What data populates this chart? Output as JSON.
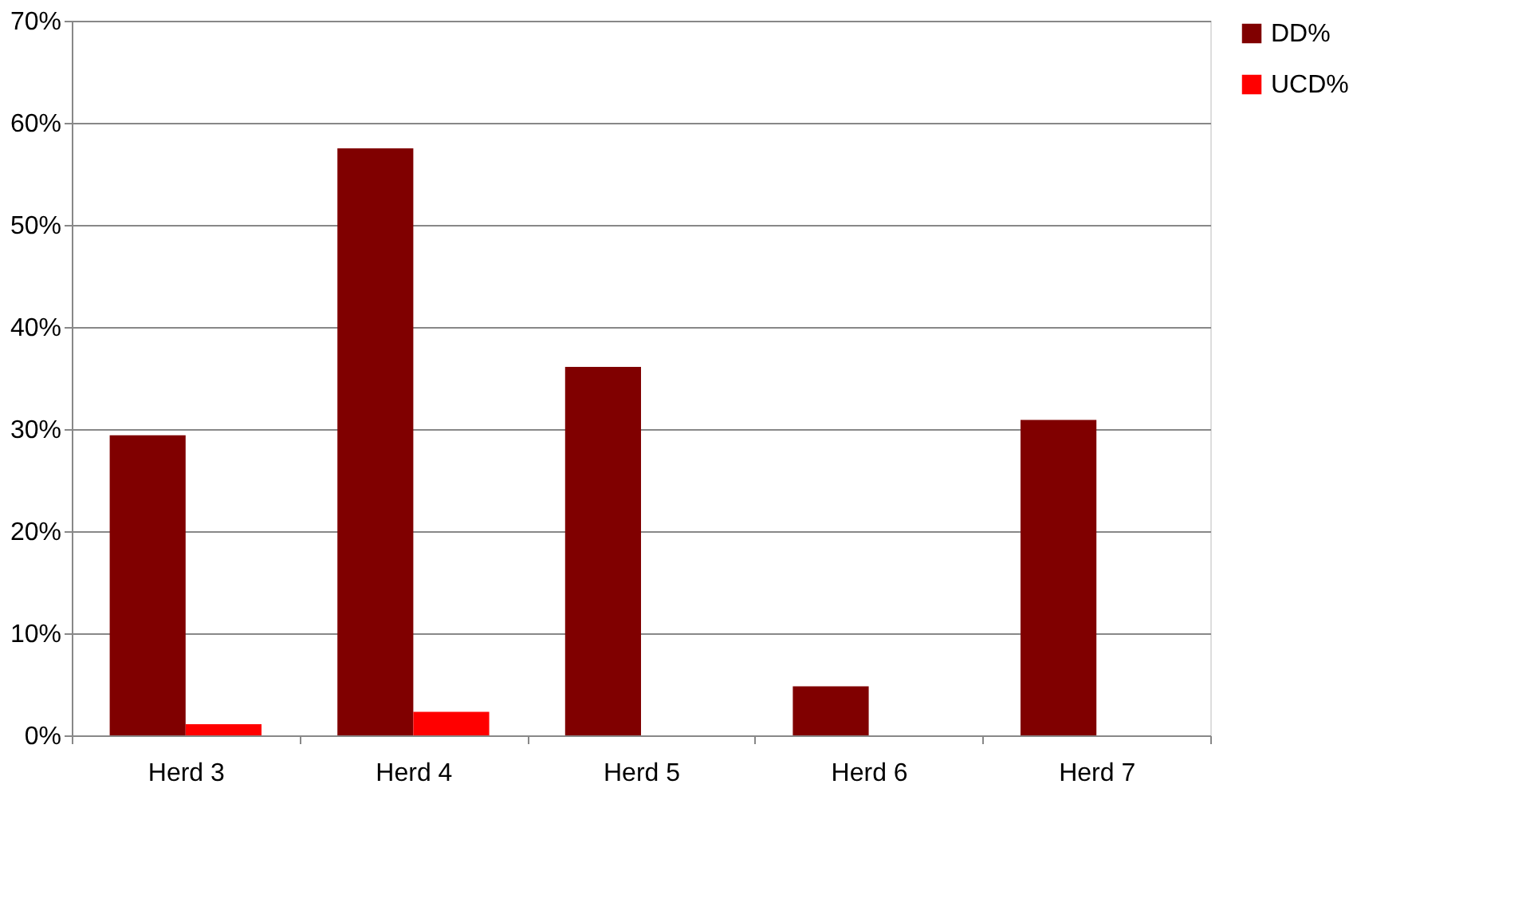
{
  "chart_data": {
    "type": "bar",
    "categories": [
      "Herd 3",
      "Herd 4",
      "Herd 5",
      "Herd 6",
      "Herd 7"
    ],
    "series": [
      {
        "name": "DD%",
        "color": "#800000",
        "values": [
          29.4,
          57.5,
          36.1,
          4.8,
          30.9
        ]
      },
      {
        "name": "UCD%",
        "color": "#ff0000",
        "values": [
          1.1,
          2.3,
          0,
          0,
          0
        ]
      }
    ],
    "ylim": [
      0,
      70
    ],
    "yticks": [
      {
        "value": 0,
        "label": "0%"
      },
      {
        "value": 10,
        "label": "10%"
      },
      {
        "value": 20,
        "label": "20%"
      },
      {
        "value": 30,
        "label": "30%"
      },
      {
        "value": 40,
        "label": "40%"
      },
      {
        "value": 50,
        "label": "50%"
      },
      {
        "value": 60,
        "label": "60%"
      },
      {
        "value": 70,
        "label": "70%"
      }
    ],
    "grid": "y",
    "legend": "right"
  }
}
